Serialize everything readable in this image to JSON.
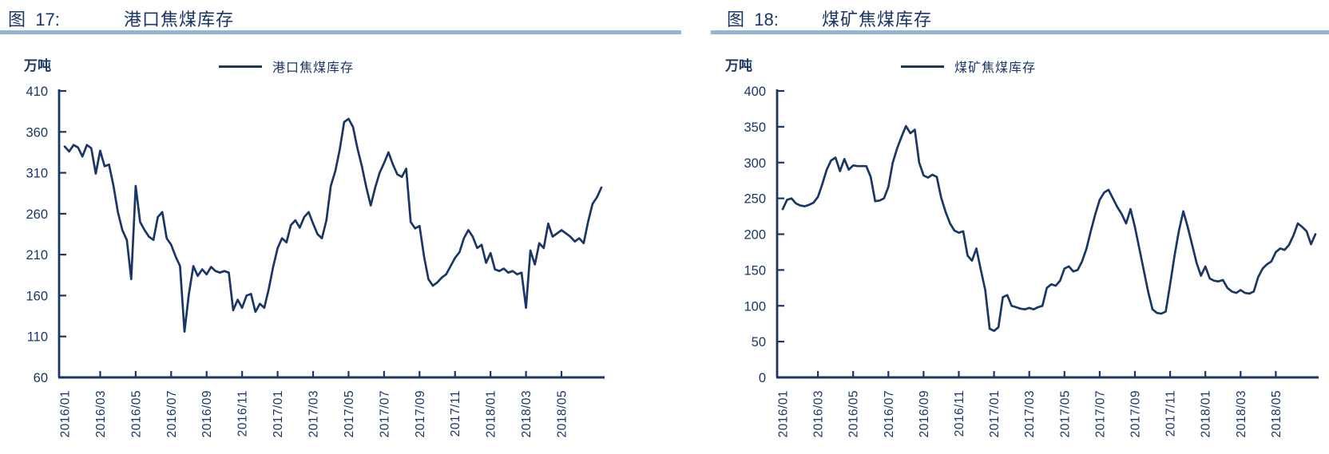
{
  "colors": {
    "navy": "#1a3667",
    "line": "#1a3667",
    "title_rule": "#95b3d7"
  },
  "figures": [
    {
      "figure_label": "图  17:",
      "title": "港口焦煤库存",
      "unit": "万吨",
      "legend_label": "港口焦煤库存"
    },
    {
      "figure_label": "图  18:",
      "title": "煤矿焦煤库存",
      "unit": "万吨",
      "legend_label": "煤矿焦煤库存"
    }
  ],
  "chart_data": [
    {
      "type": "line",
      "title": "港口焦煤库存",
      "ylabel": "万吨",
      "ylim": [
        60,
        410
      ],
      "ytick_step": 50,
      "grid": false,
      "legend_position": "top-center",
      "x_tick_labels": [
        "2016/01",
        "2016/03",
        "2016/05",
        "2016/07",
        "2016/09",
        "2016/11",
        "2017/01",
        "2017/03",
        "2017/05",
        "2017/07",
        "2017/09",
        "2017/11",
        "2018/01",
        "2018/03",
        "2018/05"
      ],
      "tick_every": 8,
      "x_frequency": "approx-weekly (4 points per month), series extends to 2018/07",
      "values": [
        342,
        336,
        344,
        341,
        330,
        344,
        340,
        309,
        337,
        318,
        320,
        294,
        262,
        240,
        228,
        180,
        294,
        250,
        240,
        232,
        228,
        256,
        262,
        230,
        222,
        208,
        196,
        116,
        162,
        196,
        184,
        192,
        186,
        195,
        190,
        188,
        190,
        188,
        142,
        155,
        145,
        160,
        162,
        140,
        150,
        145,
        168,
        195,
        218,
        230,
        225,
        246,
        252,
        243,
        256,
        262,
        248,
        235,
        230,
        252,
        294,
        312,
        338,
        372,
        376,
        366,
        340,
        318,
        292,
        270,
        292,
        310,
        322,
        335,
        320,
        308,
        305,
        315,
        250,
        242,
        245,
        208,
        180,
        172,
        176,
        182,
        186,
        196,
        206,
        213,
        230,
        240,
        232,
        218,
        222,
        200,
        212,
        192,
        190,
        193,
        188,
        190,
        186,
        188,
        145,
        215,
        198,
        224,
        218,
        248,
        232,
        236,
        240,
        236,
        232,
        226,
        230,
        224,
        250,
        272,
        280,
        292
      ]
    },
    {
      "type": "line",
      "title": "煤矿焦煤库存",
      "ylabel": "万吨",
      "ylim": [
        0,
        400
      ],
      "ytick_step": 50,
      "grid": false,
      "legend_position": "top-center",
      "x_tick_labels": [
        "2016/01",
        "2016/03",
        "2016/05",
        "2016/07",
        "2016/09",
        "2016/11",
        "2017/01",
        "2017/03",
        "2017/05",
        "2017/07",
        "2017/09",
        "2017/11",
        "2018/01",
        "2018/03",
        "2018/05"
      ],
      "tick_every": 8,
      "x_frequency": "approx-weekly (4 points per month), series extends to 2018/07",
      "values": [
        235,
        248,
        250,
        243,
        240,
        239,
        241,
        244,
        252,
        270,
        290,
        303,
        307,
        288,
        305,
        290,
        296,
        295,
        295,
        295,
        280,
        246,
        247,
        250,
        266,
        300,
        320,
        336,
        351,
        341,
        346,
        300,
        282,
        279,
        283,
        280,
        251,
        231,
        215,
        205,
        202,
        204,
        170,
        163,
        180,
        150,
        122,
        68,
        65,
        70,
        112,
        115,
        100,
        98,
        96,
        95,
        97,
        95,
        98,
        100,
        125,
        130,
        128,
        135,
        152,
        155,
        148,
        150,
        162,
        180,
        205,
        228,
        248,
        258,
        262,
        250,
        238,
        228,
        215,
        235,
        210,
        180,
        150,
        120,
        95,
        90,
        89,
        92,
        130,
        170,
        205,
        232,
        210,
        185,
        160,
        142,
        155,
        138,
        135,
        134,
        136,
        125,
        120,
        118,
        122,
        118,
        117,
        120,
        140,
        152,
        158,
        162,
        175,
        180,
        178,
        185,
        198,
        215,
        210,
        204,
        186,
        200
      ]
    }
  ]
}
